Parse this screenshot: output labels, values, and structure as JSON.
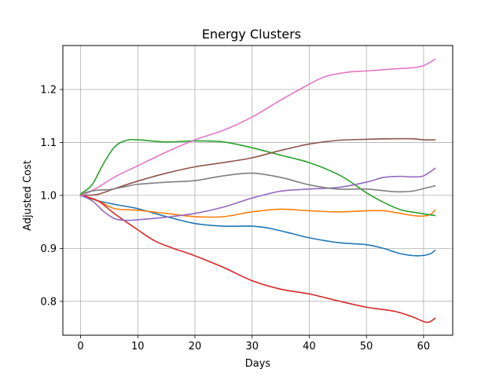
{
  "chart_data": {
    "type": "line",
    "title": "Energy Clusters",
    "xlabel": "Days",
    "ylabel": "Adjusted Cost",
    "xlim": [
      -3.1,
      65.1
    ],
    "ylim": [
      0.736,
      1.283
    ],
    "xticks": [
      0,
      10,
      20,
      30,
      40,
      50,
      60
    ],
    "yticks": [
      0.8,
      0.9,
      1.0,
      1.1,
      1.2
    ],
    "grid": true,
    "legend": "none",
    "series": [
      {
        "color": "#1f77b4",
        "points": [
          [
            0,
            1.0
          ],
          [
            3,
            0.99
          ],
          [
            6,
            0.983
          ],
          [
            10,
            0.975
          ],
          [
            15,
            0.96
          ],
          [
            20,
            0.947
          ],
          [
            25,
            0.942
          ],
          [
            30,
            0.942
          ],
          [
            33,
            0.938
          ],
          [
            37,
            0.928
          ],
          [
            40,
            0.92
          ],
          [
            45,
            0.911
          ],
          [
            50,
            0.907
          ],
          [
            53,
            0.9
          ],
          [
            56,
            0.89
          ],
          [
            59,
            0.886
          ],
          [
            61,
            0.889
          ],
          [
            62,
            0.896
          ]
        ]
      },
      {
        "color": "#ff7f0e",
        "points": [
          [
            0,
            1.0
          ],
          [
            3,
            0.99
          ],
          [
            6,
            0.975
          ],
          [
            10,
            0.972
          ],
          [
            15,
            0.966
          ],
          [
            20,
            0.96
          ],
          [
            25,
            0.96
          ],
          [
            30,
            0.969
          ],
          [
            35,
            0.974
          ],
          [
            40,
            0.971
          ],
          [
            45,
            0.969
          ],
          [
            50,
            0.971
          ],
          [
            53,
            0.971
          ],
          [
            56,
            0.966
          ],
          [
            59,
            0.961
          ],
          [
            61,
            0.963
          ],
          [
            62,
            0.972
          ]
        ]
      },
      {
        "color": "#2ca02c",
        "points": [
          [
            0,
            1.003
          ],
          [
            2,
            1.02
          ],
          [
            4,
            1.06
          ],
          [
            6,
            1.092
          ],
          [
            8,
            1.104
          ],
          [
            10,
            1.105
          ],
          [
            15,
            1.101
          ],
          [
            20,
            1.103
          ],
          [
            25,
            1.101
          ],
          [
            30,
            1.09
          ],
          [
            35,
            1.076
          ],
          [
            40,
            1.062
          ],
          [
            45,
            1.04
          ],
          [
            48,
            1.02
          ],
          [
            50,
            1.005
          ],
          [
            53,
            0.987
          ],
          [
            56,
            0.973
          ],
          [
            59,
            0.967
          ],
          [
            62,
            0.962
          ]
        ]
      },
      {
        "color": "#d62728",
        "points": [
          [
            0,
            1.0
          ],
          [
            3,
            0.99
          ],
          [
            6,
            0.965
          ],
          [
            10,
            0.935
          ],
          [
            13,
            0.914
          ],
          [
            16,
            0.901
          ],
          [
            20,
            0.886
          ],
          [
            25,
            0.864
          ],
          [
            30,
            0.839
          ],
          [
            35,
            0.823
          ],
          [
            40,
            0.814
          ],
          [
            45,
            0.801
          ],
          [
            50,
            0.789
          ],
          [
            55,
            0.781
          ],
          [
            58,
            0.771
          ],
          [
            60,
            0.762
          ],
          [
            61,
            0.761
          ],
          [
            62,
            0.768
          ]
        ]
      },
      {
        "color": "#9467bd",
        "points": [
          [
            0,
            1.0
          ],
          [
            2,
            0.99
          ],
          [
            4,
            0.97
          ],
          [
            6,
            0.956
          ],
          [
            8,
            0.953
          ],
          [
            10,
            0.954
          ],
          [
            15,
            0.959
          ],
          [
            20,
            0.966
          ],
          [
            25,
            0.978
          ],
          [
            30,
            0.995
          ],
          [
            35,
            1.008
          ],
          [
            40,
            1.012
          ],
          [
            45,
            1.015
          ],
          [
            50,
            1.025
          ],
          [
            53,
            1.034
          ],
          [
            56,
            1.036
          ],
          [
            58,
            1.035
          ],
          [
            60,
            1.037
          ],
          [
            62,
            1.051
          ]
        ]
      },
      {
        "color": "#8c564b",
        "points": [
          [
            0,
            1.0
          ],
          [
            3,
            1.002
          ],
          [
            6,
            1.013
          ],
          [
            10,
            1.027
          ],
          [
            15,
            1.042
          ],
          [
            20,
            1.054
          ],
          [
            25,
            1.062
          ],
          [
            30,
            1.071
          ],
          [
            35,
            1.085
          ],
          [
            40,
            1.097
          ],
          [
            45,
            1.104
          ],
          [
            50,
            1.106
          ],
          [
            55,
            1.107
          ],
          [
            58,
            1.107
          ],
          [
            60,
            1.105
          ],
          [
            62,
            1.105
          ]
        ]
      },
      {
        "color": "#e377c2",
        "points": [
          [
            0,
            0.998
          ],
          [
            3,
            1.015
          ],
          [
            6,
            1.035
          ],
          [
            10,
            1.056
          ],
          [
            15,
            1.082
          ],
          [
            20,
            1.105
          ],
          [
            25,
            1.123
          ],
          [
            30,
            1.148
          ],
          [
            35,
            1.18
          ],
          [
            40,
            1.21
          ],
          [
            43,
            1.225
          ],
          [
            47,
            1.233
          ],
          [
            50,
            1.235
          ],
          [
            55,
            1.239
          ],
          [
            58,
            1.241
          ],
          [
            60,
            1.245
          ],
          [
            62,
            1.257
          ]
        ]
      },
      {
        "color": "#7f7f7f",
        "points": [
          [
            0,
            1.0
          ],
          [
            1,
            1.006
          ],
          [
            3,
            1.01
          ],
          [
            5,
            1.011
          ],
          [
            8,
            1.017
          ],
          [
            10,
            1.021
          ],
          [
            15,
            1.025
          ],
          [
            20,
            1.028
          ],
          [
            25,
            1.037
          ],
          [
            30,
            1.042
          ],
          [
            35,
            1.034
          ],
          [
            40,
            1.02
          ],
          [
            45,
            1.012
          ],
          [
            50,
            1.012
          ],
          [
            55,
            1.007
          ],
          [
            58,
            1.008
          ],
          [
            60,
            1.013
          ],
          [
            62,
            1.018
          ]
        ]
      }
    ]
  }
}
